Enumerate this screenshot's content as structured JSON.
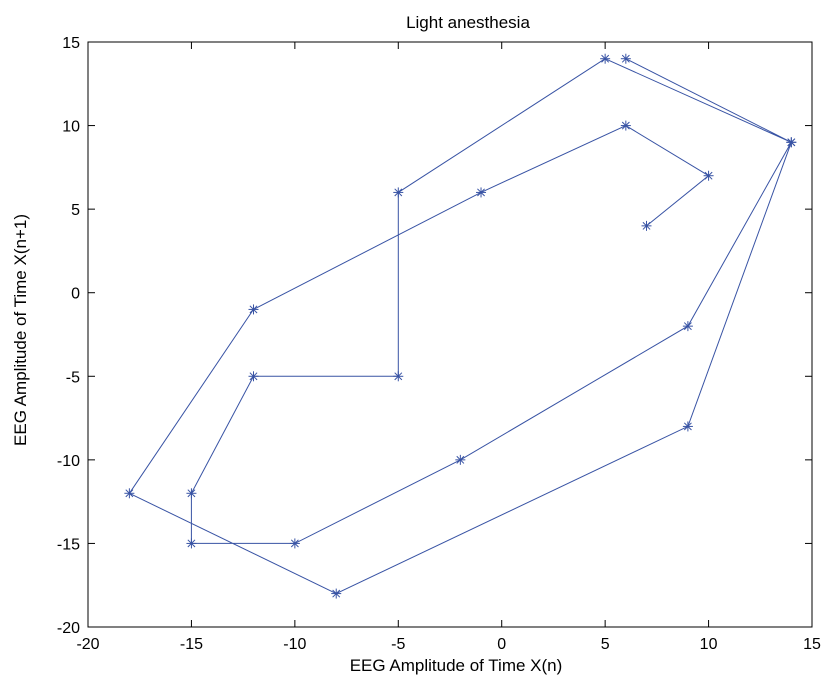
{
  "chart_data": {
    "type": "line",
    "title": "Light anesthesia",
    "xlabel": "EEG Amplitude of Time X(n)",
    "ylabel": "EEG Amplitude of Time X(n+1)",
    "xlim": [
      -20,
      15
    ],
    "ylim": [
      -20,
      15
    ],
    "xticks": [
      -20,
      -15,
      -10,
      -5,
      0,
      5,
      10,
      15
    ],
    "yticks": [
      -20,
      -15,
      -10,
      -5,
      0,
      5,
      10,
      15
    ],
    "xtick_labels": [
      "-20",
      "-15",
      "-10",
      "-5",
      "0",
      "5",
      "10",
      "15"
    ],
    "ytick_labels": [
      "-20",
      "-15",
      "-10",
      "-5",
      "0",
      "5",
      "10",
      "15"
    ],
    "grid": false,
    "marker": "asterisk",
    "series": [
      {
        "color": "#3853a4",
        "points": [
          [
            7,
            4
          ],
          [
            10,
            7
          ],
          [
            6,
            10
          ],
          [
            -1,
            6
          ],
          [
            -12,
            -1
          ],
          [
            -18,
            -12
          ],
          [
            -8,
            -18
          ],
          [
            9,
            -8
          ],
          [
            14,
            9
          ],
          [
            9,
            -2
          ],
          [
            -2,
            -10
          ],
          [
            -10,
            -15
          ],
          [
            -15,
            -15
          ],
          [
            -15,
            -12
          ],
          [
            -12,
            -5
          ],
          [
            -5,
            -5
          ],
          [
            -5,
            6
          ],
          [
            5,
            14
          ],
          [
            14,
            9
          ],
          [
            6,
            14
          ]
        ]
      }
    ]
  }
}
